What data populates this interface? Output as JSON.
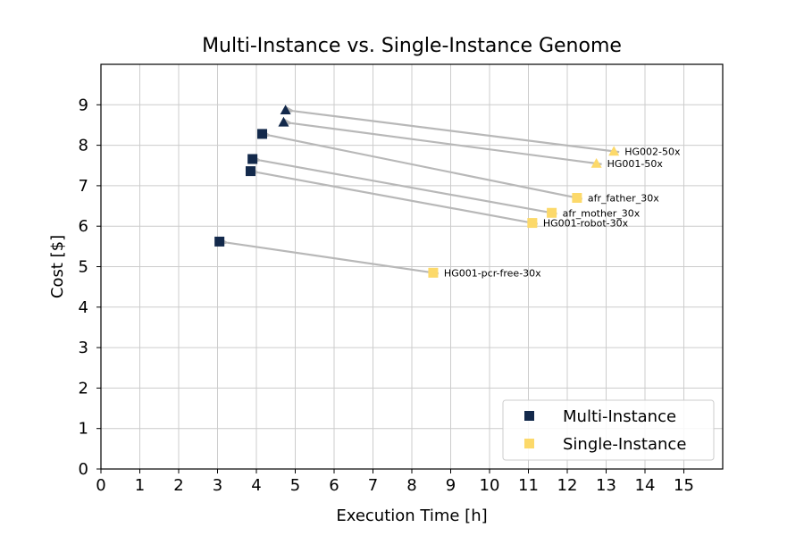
{
  "chart_data": {
    "type": "scatter",
    "title": "Multi-Instance vs. Single-Instance Genome",
    "xlabel": "Execution Time [h]",
    "ylabel": "Cost [$]",
    "xlim": [
      0,
      16
    ],
    "ylim": [
      0,
      10
    ],
    "xticks": [
      0,
      1,
      2,
      3,
      4,
      5,
      6,
      7,
      8,
      9,
      10,
      11,
      12,
      13,
      14,
      15
    ],
    "yticks": [
      0,
      1,
      2,
      3,
      4,
      5,
      6,
      7,
      8,
      9
    ],
    "grid": true,
    "legend_position": "lower-right",
    "colors": {
      "multi": "#13294b",
      "single": "#fcd96a",
      "arrow": "#b8b8b8"
    },
    "series": [
      {
        "name": "Multi-Instance",
        "marker": "square",
        "legend": true
      },
      {
        "name": "Single-Instance",
        "marker": "square",
        "legend": true
      }
    ],
    "pairs": [
      {
        "label": "HG002-50x",
        "marker": "triangle",
        "single": [
          13.2,
          7.85
        ],
        "multi": [
          4.75,
          8.87
        ]
      },
      {
        "label": "HG001-50x",
        "marker": "triangle",
        "single": [
          12.75,
          7.55
        ],
        "multi": [
          4.7,
          8.57
        ]
      },
      {
        "label": "afr_father_30x",
        "marker": "square",
        "single": [
          12.25,
          6.7
        ],
        "multi": [
          4.15,
          8.28
        ]
      },
      {
        "label": "afr_mother_30x",
        "marker": "square",
        "single": [
          11.6,
          6.33
        ],
        "multi": [
          3.9,
          7.66
        ]
      },
      {
        "label": "HG001-robot-30x",
        "marker": "square",
        "single": [
          11.1,
          6.08
        ],
        "multi": [
          3.85,
          7.36
        ]
      },
      {
        "label": "HG001-pcr-free-30x",
        "marker": "square",
        "single": [
          8.55,
          4.85
        ],
        "multi": [
          3.05,
          5.62
        ]
      }
    ]
  }
}
